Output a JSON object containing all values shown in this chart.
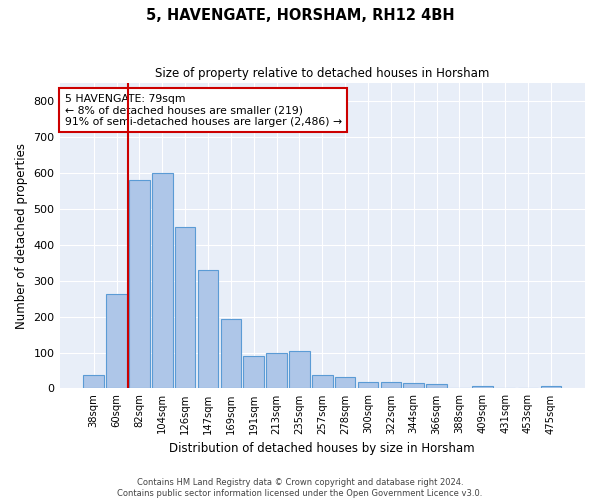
{
  "title": "5, HAVENGATE, HORSHAM, RH12 4BH",
  "subtitle": "Size of property relative to detached houses in Horsham",
  "xlabel": "Distribution of detached houses by size in Horsham",
  "ylabel": "Number of detached properties",
  "categories": [
    "38sqm",
    "60sqm",
    "82sqm",
    "104sqm",
    "126sqm",
    "147sqm",
    "169sqm",
    "191sqm",
    "213sqm",
    "235sqm",
    "257sqm",
    "278sqm",
    "300sqm",
    "322sqm",
    "344sqm",
    "366sqm",
    "388sqm",
    "409sqm",
    "431sqm",
    "453sqm",
    "475sqm"
  ],
  "values": [
    38,
    263,
    580,
    600,
    450,
    330,
    193,
    90,
    100,
    105,
    37,
    32,
    18,
    17,
    14,
    11,
    0,
    6,
    0,
    0,
    7
  ],
  "bar_color": "#aec6e8",
  "bar_edge_color": "#5b9bd5",
  "vline_x": 1.5,
  "property_line_label": "5 HAVENGATE: 79sqm",
  "annotation_line1": "← 8% of detached houses are smaller (219)",
  "annotation_line2": "91% of semi-detached houses are larger (2,486) →",
  "annotation_box_color": "#ffffff",
  "annotation_box_edge_color": "#cc0000",
  "vline_color": "#cc0000",
  "ylim": [
    0,
    850
  ],
  "yticks": [
    0,
    100,
    200,
    300,
    400,
    500,
    600,
    700,
    800
  ],
  "background_color": "#e8eef8",
  "footer_line1": "Contains HM Land Registry data © Crown copyright and database right 2024.",
  "footer_line2": "Contains public sector information licensed under the Open Government Licence v3.0."
}
